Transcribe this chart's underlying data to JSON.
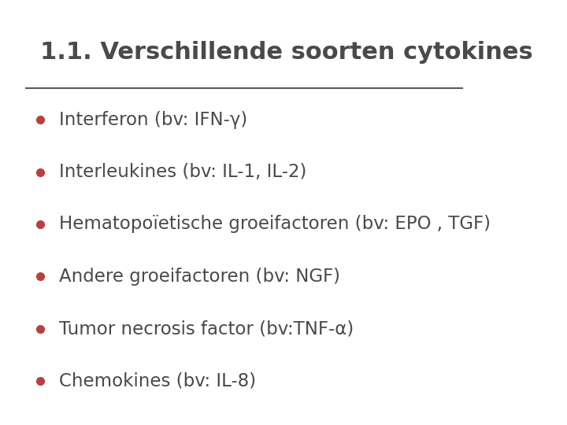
{
  "title": "1.1. Verschillende soorten cytokines",
  "title_color": "#4a4a4a",
  "title_fontsize": 22,
  "title_bold": true,
  "background_color": "#ffffff",
  "bullet_color": "#b94040",
  "bullet_text_color": "#4a4a4a",
  "bullet_fontsize": 16.5,
  "line_color": "#5a5a5a",
  "bullets": [
    "Interferon (bv: IFN-γ)",
    "Interleukines (bv: IL-1, IL-2)",
    "Hematopoïetische groeifactoren (bv: EPO , TGF)",
    "Andere groeifactoren (bv: NGF)",
    "Tumor necrosis factor (bv:TNF-α)",
    "Chemokines (bv: IL-8)"
  ]
}
